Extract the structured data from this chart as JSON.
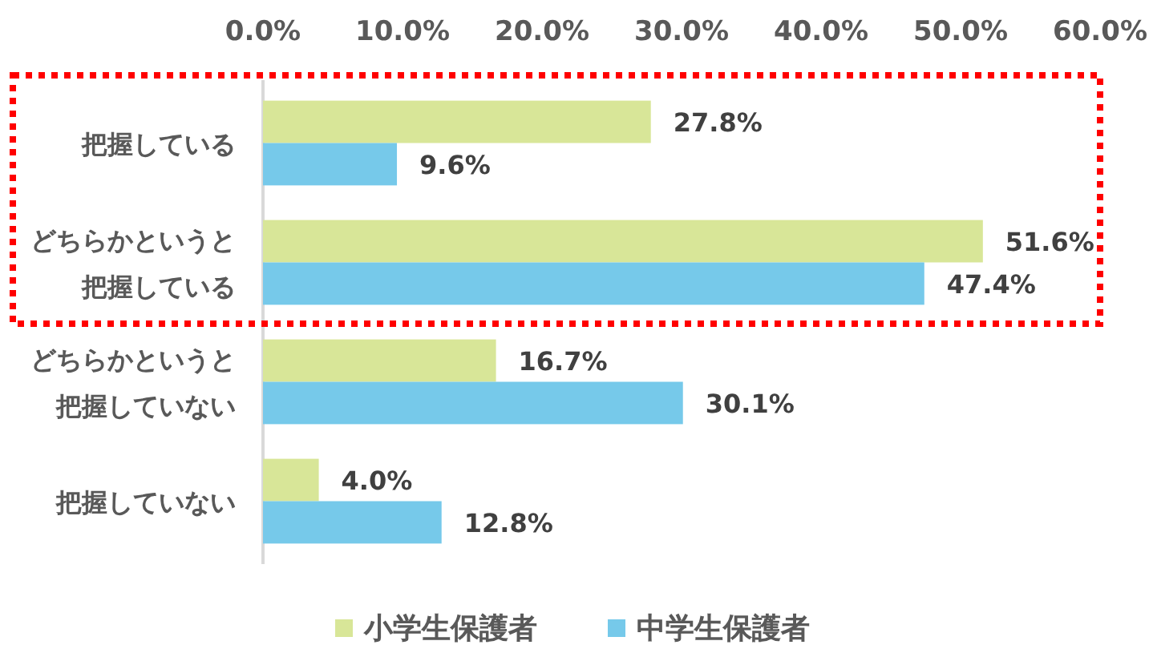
{
  "chart_data": {
    "type": "bar",
    "orientation": "horizontal",
    "categories": [
      "把握している",
      "どちらかというと把握している",
      "どちらかというと把握していない",
      "把握していない"
    ],
    "series": [
      {
        "name": "小学生保護者",
        "color": "#d8e698",
        "values": [
          27.8,
          51.6,
          16.7,
          4.0
        ],
        "value_labels": [
          "27.8%",
          "51.6%",
          "16.7%",
          "4.0%"
        ]
      },
      {
        "name": "中学生保護者",
        "color": "#76c9ea",
        "values": [
          9.6,
          47.4,
          30.1,
          12.8
        ],
        "value_labels": [
          "9.6%",
          "47.4%",
          "30.1%",
          "12.8%"
        ]
      }
    ],
    "xlim": [
      0,
      60
    ],
    "xticks": [
      {
        "value": 0,
        "label": "0.0%"
      },
      {
        "value": 10,
        "label": "10.0%"
      },
      {
        "value": 20,
        "label": "20.0%"
      },
      {
        "value": 30,
        "label": "30.0%"
      },
      {
        "value": 40,
        "label": "40.0%"
      },
      {
        "value": 50,
        "label": "50.0%"
      },
      {
        "value": 60,
        "label": "60.0%"
      }
    ],
    "legend": "bottom"
  }
}
